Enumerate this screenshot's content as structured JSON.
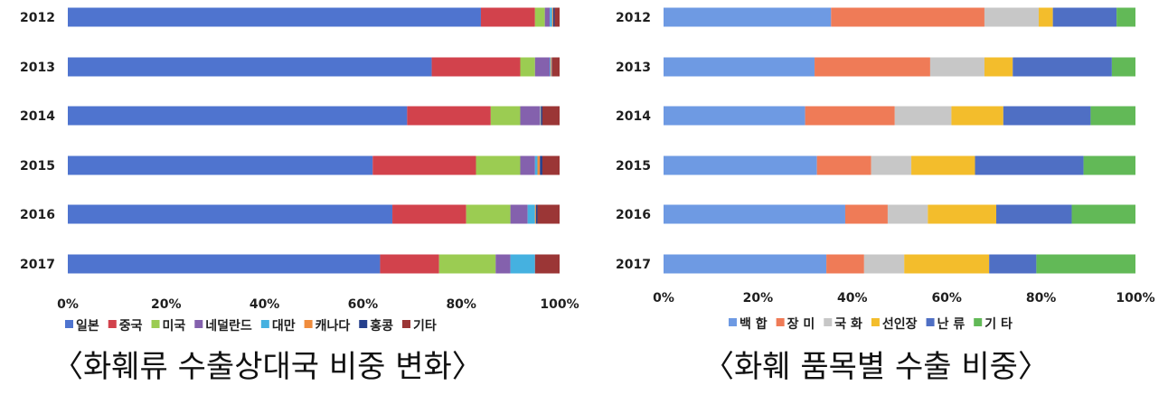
{
  "chart_data": [
    {
      "type": "bar",
      "orientation": "horizontal",
      "stacked": true,
      "percent": true,
      "title": "〈화훼류 수출상대국 비중 변화〉",
      "categories": [
        "2012",
        "2013",
        "2014",
        "2015",
        "2016",
        "2017"
      ],
      "xticks": [
        "0%",
        "20%",
        "40%",
        "60%",
        "80%",
        "100%"
      ],
      "xlim": [
        0,
        100
      ],
      "legend_position": "bottom",
      "series": [
        {
          "name": "일본",
          "color": "#4f74cf",
          "values": [
            84,
            74,
            69,
            62,
            66,
            63.5
          ]
        },
        {
          "name": "중국",
          "color": "#d2424c",
          "values": [
            11,
            18,
            17,
            21,
            15,
            12
          ]
        },
        {
          "name": "미국",
          "color": "#9bcc52",
          "values": [
            2,
            3,
            6,
            9,
            9,
            11.5
          ]
        },
        {
          "name": "네덜란드",
          "color": "#8461ad",
          "values": [
            1,
            3,
            4,
            3,
            3.5,
            3
          ]
        },
        {
          "name": "대만",
          "color": "#45b1e0",
          "values": [
            0.5,
            0.2,
            0.1,
            0.5,
            1.5,
            5
          ]
        },
        {
          "name": "캐나다",
          "color": "#f08c3d",
          "values": [
            0.2,
            0.2,
            0.1,
            0.5,
            0.2,
            0
          ]
        },
        {
          "name": "홍콩",
          "color": "#253f8c",
          "values": [
            0.3,
            0.1,
            0.3,
            0.5,
            0.3,
            0
          ]
        },
        {
          "name": "기타",
          "color": "#9b3636",
          "values": [
            1,
            1.5,
            3.5,
            3.5,
            4.5,
            5
          ]
        }
      ]
    },
    {
      "type": "bar",
      "orientation": "horizontal",
      "stacked": true,
      "percent": true,
      "title": "〈화훼 품목별 수출 비중〉",
      "categories": [
        "2012",
        "2013",
        "2014",
        "2015",
        "2016",
        "2017"
      ],
      "xticks": [
        "0%",
        "20%",
        "40%",
        "60%",
        "80%",
        "100%"
      ],
      "xlim": [
        0,
        100
      ],
      "legend_position": "bottom",
      "series": [
        {
          "name": "백 합",
          "color": "#6e9ae3",
          "values": [
            35.5,
            32,
            30,
            32.5,
            38.5,
            34.5
          ]
        },
        {
          "name": "장 미",
          "color": "#ef7b57",
          "values": [
            32.5,
            24.5,
            19,
            11.5,
            9,
            8
          ]
        },
        {
          "name": "국 화",
          "color": "#c7c7c7",
          "values": [
            11.5,
            11.5,
            12,
            8.5,
            8.5,
            8.5
          ]
        },
        {
          "name": "선인장",
          "color": "#f3bd2c",
          "values": [
            3,
            6,
            11,
            13.5,
            14.5,
            18
          ]
        },
        {
          "name": "난 류",
          "color": "#4f6fc4",
          "values": [
            13.5,
            21,
            18.5,
            23,
            16,
            10
          ]
        },
        {
          "name": "기 타",
          "color": "#62b957",
          "values": [
            4,
            5,
            9.5,
            11,
            13.5,
            21
          ]
        }
      ]
    }
  ]
}
